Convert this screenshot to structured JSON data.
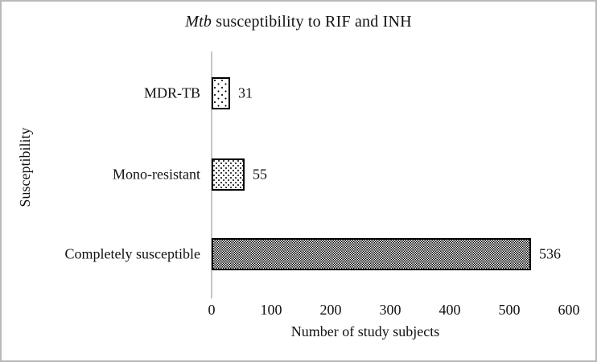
{
  "chart_data": {
    "type": "bar",
    "orientation": "horizontal",
    "title": "Mtb susceptibility to RIF and INH",
    "title_italic_part": "Mtb",
    "title_rest": " susceptibility to RIF and INH",
    "xlabel": "Number of study subjects",
    "ylabel": "Susceptibility",
    "categories": [
      "MDR-TB",
      "Mono-resistant",
      "Completely susceptible"
    ],
    "values": [
      31,
      55,
      536
    ],
    "value_labels": [
      "31",
      "55",
      "536"
    ],
    "x_ticks": [
      "0",
      "100",
      "200",
      "300",
      "400",
      "500",
      "600"
    ],
    "xlim": [
      0,
      600
    ],
    "grid": false,
    "legend": false,
    "bar_patterns": [
      "sparse-dots",
      "dotted-columns",
      "dense-checker"
    ],
    "colors": {
      "bar_border": "#000000",
      "axis_line": "#c6c6c6",
      "frame_border": "#b9b9b9",
      "text": "#111111",
      "background": "#ffffff"
    }
  }
}
